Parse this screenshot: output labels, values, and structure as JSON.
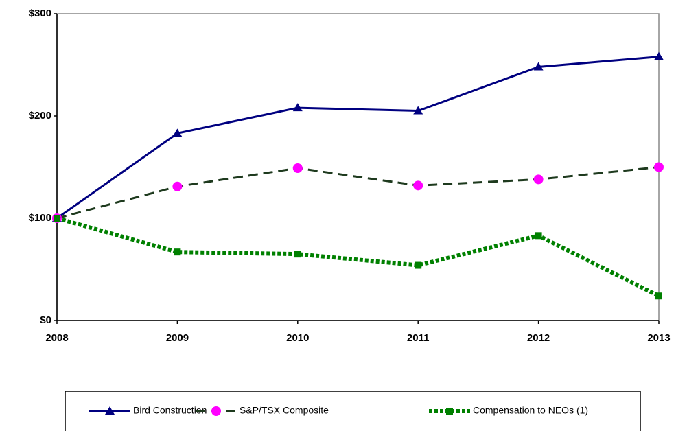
{
  "chart_data": {
    "type": "line",
    "categories": [
      "2008",
      "2009",
      "2010",
      "2011",
      "2012",
      "2013"
    ],
    "series": [
      {
        "name": "Bird Construction",
        "color": "#000080",
        "marker": "triangle",
        "marker_color": "#000080",
        "dash": "solid",
        "values": [
          100,
          183,
          208,
          205,
          248,
          258
        ]
      },
      {
        "name": "S&P/TSX Composite",
        "color": "#1e3a1e",
        "marker": "circle",
        "marker_color": "#ff00ff",
        "dash": "dashed",
        "values": [
          100,
          131,
          149,
          132,
          138,
          150
        ]
      },
      {
        "name": "Compensation to NEOs (1)",
        "color": "#008000",
        "marker": "square",
        "marker_color": "#008000",
        "dash": "dotted",
        "values": [
          100,
          67,
          65,
          54,
          83,
          24
        ]
      }
    ],
    "ylim": [
      0,
      300
    ],
    "yticks": [
      {
        "value": 0,
        "label": "$0"
      },
      {
        "value": 100,
        "label": "$100"
      },
      {
        "value": 200,
        "label": "$200"
      },
      {
        "value": 300,
        "label": "$300"
      }
    ],
    "legend": "bottom"
  }
}
